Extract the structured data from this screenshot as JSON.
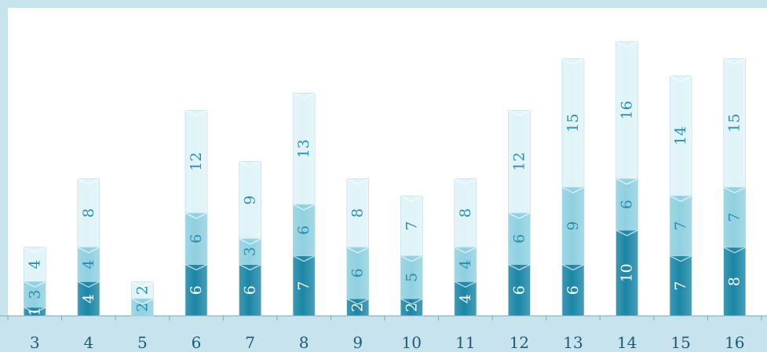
{
  "chart_data": {
    "type": "bar",
    "stacked": true,
    "categories": [
      "3",
      "4",
      "5",
      "6",
      "7",
      "8",
      "9",
      "10",
      "11",
      "12",
      "13",
      "14",
      "15",
      "16"
    ],
    "series": [
      {
        "values": [
          1,
          4,
          0,
          6,
          6,
          7,
          2,
          2,
          4,
          6,
          6,
          10,
          7,
          8
        ]
      },
      {
        "values": [
          3,
          4,
          2,
          6,
          3,
          6,
          6,
          5,
          4,
          6,
          9,
          6,
          7,
          7
        ]
      },
      {
        "values": [
          4,
          8,
          2,
          12,
          9,
          13,
          8,
          7,
          8,
          12,
          15,
          16,
          14,
          15
        ]
      }
    ],
    "colors": [
      "#1b86a6",
      "#8fd0e0",
      "#dff3f8"
    ],
    "label_colors": [
      "#ffffff",
      "#2a8fae",
      "#2a8fae"
    ],
    "ylim": [
      0,
      33
    ],
    "title": "",
    "xlabel": "",
    "ylabel": "",
    "grid": false,
    "legend": "none"
  }
}
